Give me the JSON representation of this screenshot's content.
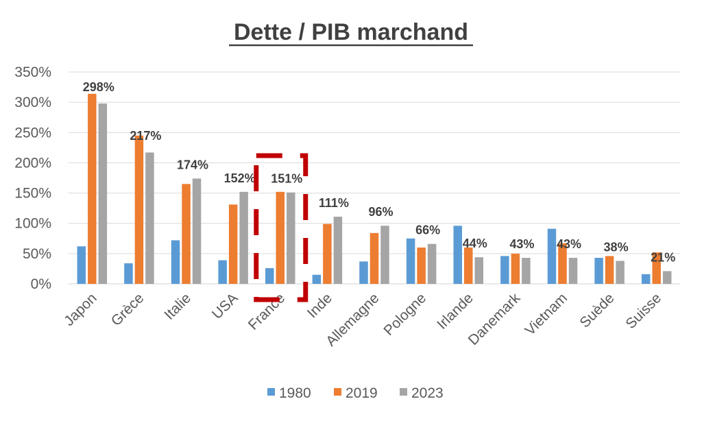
{
  "chart_data": {
    "type": "bar",
    "title": "Dette / PIB marchand",
    "xlabel": "",
    "ylabel": "",
    "ylim": [
      0,
      350
    ],
    "yticks": [
      "0%",
      "50%",
      "100%",
      "150%",
      "200%",
      "250%",
      "300%",
      "350%"
    ],
    "grid": true,
    "legend_position": "bottom",
    "categories": [
      "Japon",
      "Grèce",
      "Italie",
      "USA",
      "France",
      "Inde",
      "Allemagne",
      "Pologne",
      "Irlande",
      "Danemark",
      "Vietnam",
      "Suède",
      "Suisse"
    ],
    "series": [
      {
        "name": "1980",
        "color": "#5b9bd5",
        "values": [
          62,
          34,
          72,
          39,
          26,
          15,
          37,
          75,
          96,
          46,
          91,
          43,
          16
        ]
      },
      {
        "name": "2019",
        "color": "#ed7d31",
        "values": [
          314,
          245,
          165,
          131,
          152,
          99,
          84,
          60,
          60,
          50,
          67,
          46,
          52
        ]
      },
      {
        "name": "2023",
        "color": "#a5a5a5",
        "values": [
          298,
          217,
          174,
          152,
          151,
          111,
          96,
          66,
          44,
          43,
          43,
          38,
          21
        ]
      }
    ],
    "data_labels": [
      "298%",
      "217%",
      "174%",
      "152%",
      "151%",
      "111%",
      "96%",
      "66%",
      "44%",
      "43%",
      "43%",
      "38%",
      "21%"
    ],
    "annotation": {
      "type": "dashed-highlight-box",
      "category": "France",
      "color": "#c00000"
    }
  }
}
